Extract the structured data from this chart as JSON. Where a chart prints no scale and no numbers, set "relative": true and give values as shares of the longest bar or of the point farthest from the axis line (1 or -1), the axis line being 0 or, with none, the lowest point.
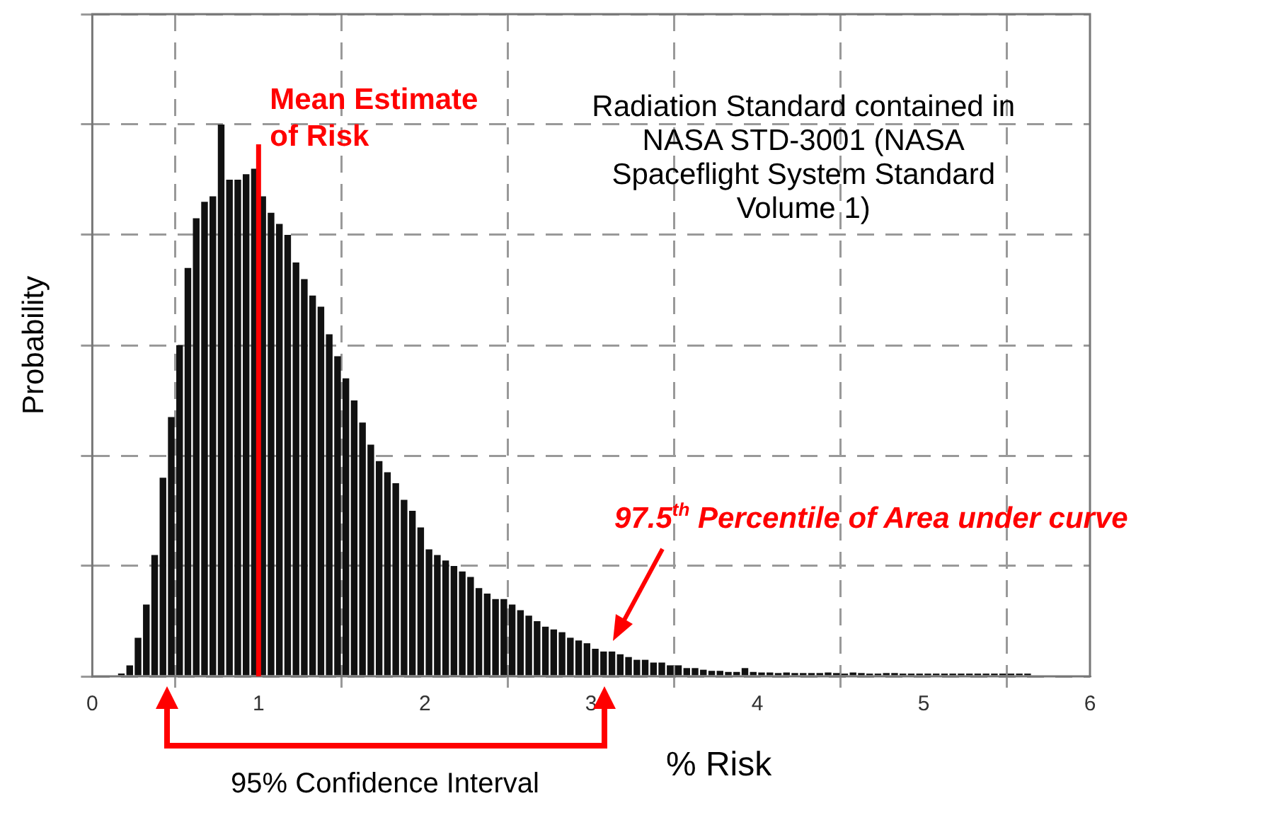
{
  "chart_data": {
    "type": "bar",
    "relative": true,
    "xlabel": "% Risk",
    "ylabel": "Probability",
    "color": "#111111",
    "x": [
      0.175,
      0.225,
      0.275,
      0.325,
      0.375,
      0.425,
      0.475,
      0.525,
      0.575,
      0.625,
      0.675,
      0.725,
      0.775,
      0.825,
      0.875,
      0.925,
      0.975,
      1.025,
      1.075,
      1.125,
      1.175,
      1.225,
      1.275,
      1.325,
      1.375,
      1.425,
      1.475,
      1.525,
      1.575,
      1.625,
      1.675,
      1.725,
      1.775,
      1.825,
      1.875,
      1.925,
      1.975,
      2.025,
      2.075,
      2.125,
      2.175,
      2.225,
      2.275,
      2.325,
      2.375,
      2.425,
      2.475,
      2.525,
      2.575,
      2.625,
      2.675,
      2.725,
      2.775,
      2.825,
      2.875,
      2.925,
      2.975,
      3.025,
      3.075,
      3.125,
      3.175,
      3.225,
      3.275,
      3.325,
      3.375,
      3.425,
      3.475,
      3.525,
      3.575,
      3.625,
      3.675,
      3.725,
      3.775,
      3.825,
      3.875,
      3.925,
      3.975,
      4.025,
      4.075,
      4.125,
      4.175,
      4.225,
      4.275,
      4.325,
      4.375,
      4.425,
      4.475,
      4.525,
      4.575,
      4.625,
      4.675,
      4.725,
      4.775,
      4.825,
      4.875,
      4.925,
      4.975,
      5.025,
      5.075,
      5.125,
      5.175,
      5.225,
      5.275,
      5.325,
      5.375,
      5.425,
      5.475,
      5.525,
      5.575,
      5.625
    ],
    "values": [
      0.005,
      0.02,
      0.07,
      0.13,
      0.22,
      0.36,
      0.47,
      0.6,
      0.74,
      0.83,
      0.86,
      0.87,
      1.0,
      0.9,
      0.9,
      0.91,
      0.92,
      0.87,
      0.84,
      0.82,
      0.8,
      0.75,
      0.72,
      0.69,
      0.67,
      0.62,
      0.58,
      0.54,
      0.5,
      0.46,
      0.42,
      0.39,
      0.37,
      0.35,
      0.32,
      0.3,
      0.27,
      0.23,
      0.22,
      0.21,
      0.2,
      0.19,
      0.18,
      0.16,
      0.15,
      0.14,
      0.14,
      0.13,
      0.12,
      0.11,
      0.1,
      0.09,
      0.085,
      0.08,
      0.07,
      0.065,
      0.06,
      0.05,
      0.045,
      0.045,
      0.04,
      0.035,
      0.03,
      0.03,
      0.025,
      0.025,
      0.02,
      0.02,
      0.015,
      0.015,
      0.012,
      0.01,
      0.01,
      0.008,
      0.008,
      0.015,
      0.008,
      0.007,
      0.007,
      0.006,
      0.007,
      0.006,
      0.006,
      0.006,
      0.006,
      0.007,
      0.006,
      0.005,
      0.007,
      0.006,
      0.005,
      0.005,
      0.006,
      0.006,
      0.005,
      0.005,
      0.005,
      0.005,
      0.005,
      0.005,
      0.005,
      0.005,
      0.005,
      0.005,
      0.005,
      0.005,
      0.005,
      0.005,
      0.005,
      0.005
    ],
    "xlim": [
      0,
      6
    ],
    "xticks": [
      0,
      1,
      2,
      3,
      4,
      5,
      6
    ],
    "grid": true,
    "ref_lines": [
      {
        "axis": "x",
        "value": 1,
        "label": "Mean Estimate of Risk",
        "color": "#ff0000"
      }
    ],
    "annotations": [
      "Radiation Standard contained in NASA STD-3001 (NASA Spaceflight System Standard Volume 1)",
      "97.5$^{th}$ Percentile of Area under curve",
      "95% Confidence Interval"
    ]
  }
}
